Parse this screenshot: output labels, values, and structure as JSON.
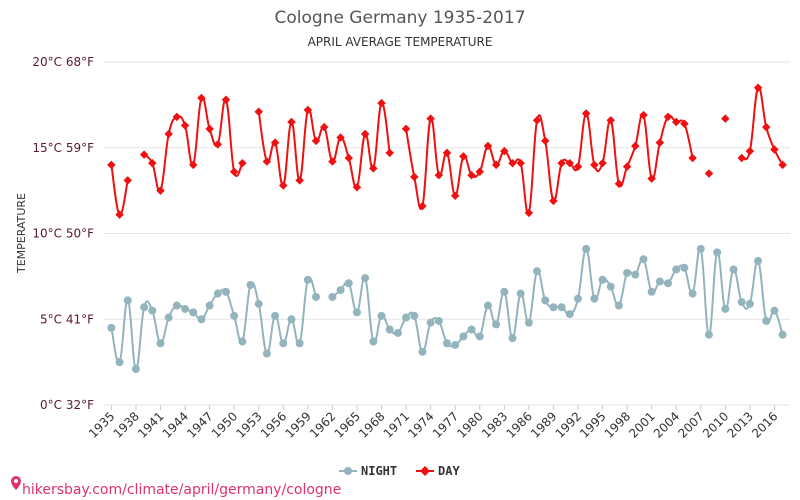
{
  "chart_data": {
    "type": "line",
    "title": "Cologne Germany 1935-2017",
    "subtitle": "APRIL AVERAGE TEMPERATURE",
    "ylabel": "TEMPERATURE",
    "ylim": [
      0,
      20
    ],
    "yticks": [
      {
        "value": 0,
        "label": "0°C 32°F"
      },
      {
        "value": 5,
        "label": "5°C 41°F"
      },
      {
        "value": 10,
        "label": "10°C 50°F"
      },
      {
        "value": 15,
        "label": "15°C 59°F"
      },
      {
        "value": 20,
        "label": "20°C 68°F"
      }
    ],
    "xlim": [
      1935,
      2017
    ],
    "xticks": [
      "1935",
      "1938",
      "1941",
      "1944",
      "1947",
      "1950",
      "1953",
      "1956",
      "1959",
      "1962",
      "1965",
      "1968",
      "1971",
      "1974",
      "1977",
      "1980",
      "1983",
      "1986",
      "1989",
      "1992",
      "1995",
      "1998",
      "2001",
      "2004",
      "2007",
      "2010",
      "2013",
      "2016"
    ],
    "x": [
      1935,
      1936,
      1937,
      1938,
      1939,
      1940,
      1941,
      1942,
      1943,
      1944,
      1945,
      1946,
      1947,
      1948,
      1949,
      1950,
      1951,
      1952,
      1953,
      1954,
      1955,
      1956,
      1957,
      1958,
      1959,
      1960,
      1961,
      1962,
      1963,
      1964,
      1965,
      1966,
      1967,
      1968,
      1969,
      1970,
      1971,
      1972,
      1973,
      1974,
      1975,
      1976,
      1977,
      1978,
      1979,
      1980,
      1981,
      1982,
      1983,
      1984,
      1985,
      1986,
      1987,
      1988,
      1989,
      1990,
      1991,
      1992,
      1993,
      1994,
      1995,
      1996,
      1997,
      1998,
      1999,
      2000,
      2001,
      2002,
      2003,
      2004,
      2005,
      2006,
      2007,
      2008,
      2009,
      2010,
      2011,
      2012,
      2013,
      2014,
      2015,
      2016,
      2017
    ],
    "series": [
      {
        "name": "NIGHT",
        "color": "#93b4bc",
        "values": [
          4.5,
          2.5,
          6.1,
          2.1,
          5.7,
          5.5,
          3.6,
          5.1,
          5.8,
          5.6,
          5.4,
          5.0,
          5.8,
          6.5,
          6.6,
          5.2,
          3.7,
          7.0,
          5.9,
          3.0,
          5.2,
          3.6,
          5.0,
          3.6,
          7.3,
          6.3,
          null,
          6.3,
          6.7,
          7.1,
          5.4,
          7.4,
          3.7,
          5.2,
          4.4,
          4.2,
          5.1,
          5.2,
          3.1,
          4.8,
          4.9,
          3.6,
          3.5,
          4.0,
          4.4,
          4.0,
          5.8,
          4.7,
          6.6,
          3.9,
          6.5,
          4.8,
          7.8,
          6.1,
          5.7,
          5.7,
          5.3,
          6.2,
          9.1,
          6.2,
          7.3,
          6.9,
          5.8,
          7.7,
          7.6,
          8.5,
          6.6,
          7.2,
          7.1,
          7.9,
          8.0,
          6.5,
          9.1,
          4.1,
          8.9,
          5.6,
          7.9,
          6.0,
          5.9,
          8.4,
          4.9,
          5.5,
          4.1
        ]
      },
      {
        "name": "DAY",
        "color": "#ee1111",
        "values": [
          14.0,
          11.1,
          13.1,
          null,
          14.6,
          14.1,
          12.5,
          15.8,
          16.8,
          16.3,
          14.0,
          17.9,
          16.1,
          15.2,
          17.8,
          13.6,
          14.1,
          null,
          17.1,
          14.2,
          15.3,
          12.8,
          16.5,
          13.1,
          17.2,
          15.4,
          16.2,
          14.2,
          15.6,
          14.4,
          12.7,
          15.8,
          13.8,
          17.6,
          14.7,
          null,
          16.1,
          13.3,
          11.6,
          16.7,
          13.4,
          14.7,
          12.2,
          14.5,
          13.4,
          13.6,
          15.1,
          14.0,
          14.8,
          14.1,
          14.1,
          11.2,
          16.6,
          15.4,
          11.9,
          14.1,
          14.1,
          13.9,
          17.0,
          14.0,
          14.1,
          16.6,
          12.9,
          13.9,
          15.1,
          16.9,
          13.2,
          15.3,
          16.8,
          16.5,
          16.4,
          14.4,
          null,
          13.5,
          null,
          16.7,
          null,
          14.4,
          14.8,
          18.5,
          16.2,
          14.9,
          14.0
        ]
      }
    ],
    "legend_position": "bottom-center",
    "grid": true
  },
  "footer": {
    "url": "hikersbay.com/climate/april/germany/cologne"
  },
  "colors": {
    "night": "#93b4bc",
    "day": "#ee1111",
    "footer": "#e0336a"
  },
  "icons": {
    "footer": "location-pin-icon"
  }
}
